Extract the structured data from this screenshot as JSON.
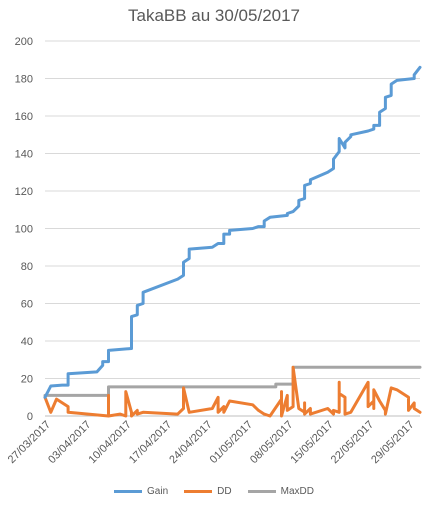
{
  "chart_data": {
    "type": "line",
    "title": "TakaBB au 30/05/2017",
    "ylim": [
      0,
      200
    ],
    "y_ticks": [
      "0",
      "20",
      "40",
      "60",
      "80",
      "100",
      "120",
      "140",
      "160",
      "180",
      "200"
    ],
    "x_ticks": [
      "27/03/2017",
      "03/04/2017",
      "10/04/2017",
      "17/04/2017",
      "24/04/2017",
      "01/05/2017",
      "08/05/2017",
      "15/05/2017",
      "22/05/2017",
      "29/05/2017"
    ],
    "xlim": [
      "2017-03-27",
      "2017-05-31"
    ],
    "grid": true,
    "legend_position": "bottom",
    "series": [
      {
        "name": "Gain",
        "color": "#5b9bd5",
        "points": [
          [
            "2017-03-27",
            10
          ],
          [
            "2017-03-28",
            16
          ],
          [
            "2017-03-30",
            16.5
          ],
          [
            "2017-03-31",
            16.5
          ],
          [
            "2017-03-31",
            22.5
          ],
          [
            "2017-04-05",
            23.5
          ],
          [
            "2017-04-06",
            27
          ],
          [
            "2017-04-06",
            29
          ],
          [
            "2017-04-07",
            29
          ],
          [
            "2017-04-07",
            35
          ],
          [
            "2017-04-11",
            36
          ],
          [
            "2017-04-11",
            53
          ],
          [
            "2017-04-12",
            54
          ],
          [
            "2017-04-12",
            59
          ],
          [
            "2017-04-13",
            60
          ],
          [
            "2017-04-13",
            66
          ],
          [
            "2017-04-19",
            73
          ],
          [
            "2017-04-20",
            75
          ],
          [
            "2017-04-20",
            82
          ],
          [
            "2017-04-21",
            84
          ],
          [
            "2017-04-21",
            89
          ],
          [
            "2017-04-25",
            90
          ],
          [
            "2017-04-26",
            92
          ],
          [
            "2017-04-27",
            92
          ],
          [
            "2017-04-27",
            97
          ],
          [
            "2017-04-28",
            97
          ],
          [
            "2017-04-28",
            99
          ],
          [
            "2017-05-02",
            100
          ],
          [
            "2017-05-03",
            101
          ],
          [
            "2017-05-04",
            101
          ],
          [
            "2017-05-04",
            104
          ],
          [
            "2017-05-05",
            106
          ],
          [
            "2017-05-08",
            107
          ],
          [
            "2017-05-08",
            108
          ],
          [
            "2017-05-09",
            109
          ],
          [
            "2017-05-10",
            112
          ],
          [
            "2017-05-10",
            115
          ],
          [
            "2017-05-11",
            116
          ],
          [
            "2017-05-11",
            123
          ],
          [
            "2017-05-12",
            124
          ],
          [
            "2017-05-12",
            126
          ],
          [
            "2017-05-15",
            130
          ],
          [
            "2017-05-16",
            132
          ],
          [
            "2017-05-16",
            137
          ],
          [
            "2017-05-17",
            141
          ],
          [
            "2017-05-17",
            148
          ],
          [
            "2017-05-18",
            143
          ],
          [
            "2017-05-18",
            146
          ],
          [
            "2017-05-19",
            149
          ],
          [
            "2017-05-19",
            150
          ],
          [
            "2017-05-22",
            152
          ],
          [
            "2017-05-23",
            153
          ],
          [
            "2017-05-23",
            155
          ],
          [
            "2017-05-24",
            155
          ],
          [
            "2017-05-24",
            162
          ],
          [
            "2017-05-25",
            164
          ],
          [
            "2017-05-25",
            170
          ],
          [
            "2017-05-26",
            171
          ],
          [
            "2017-05-26",
            177
          ],
          [
            "2017-05-27",
            179
          ],
          [
            "2017-05-30",
            180
          ],
          [
            "2017-05-30",
            182
          ],
          [
            "2017-05-31",
            186
          ]
        ]
      },
      {
        "name": "DD",
        "color": "#ed7d31",
        "points": [
          [
            "2017-03-27",
            10
          ],
          [
            "2017-03-28",
            2
          ],
          [
            "2017-03-29",
            9
          ],
          [
            "2017-03-31",
            5
          ],
          [
            "2017-03-31",
            2
          ],
          [
            "2017-04-07",
            0
          ],
          [
            "2017-04-07",
            11
          ],
          [
            "2017-04-07",
            0
          ],
          [
            "2017-04-09",
            1
          ],
          [
            "2017-04-10",
            0
          ],
          [
            "2017-04-10",
            13
          ],
          [
            "2017-04-11",
            2
          ],
          [
            "2017-04-11",
            0
          ],
          [
            "2017-04-12",
            3
          ],
          [
            "2017-04-12",
            1
          ],
          [
            "2017-04-13",
            2
          ],
          [
            "2017-04-19",
            1
          ],
          [
            "2017-04-20",
            4
          ],
          [
            "2017-04-20",
            15
          ],
          [
            "2017-04-21",
            2
          ],
          [
            "2017-04-25",
            4
          ],
          [
            "2017-04-26",
            10
          ],
          [
            "2017-04-26",
            2
          ],
          [
            "2017-04-27",
            5
          ],
          [
            "2017-04-27",
            2
          ],
          [
            "2017-04-28",
            8
          ],
          [
            "2017-05-02",
            6
          ],
          [
            "2017-05-03",
            3
          ],
          [
            "2017-05-04",
            1
          ],
          [
            "2017-05-05",
            0
          ],
          [
            "2017-05-07",
            9
          ],
          [
            "2017-05-07",
            13
          ],
          [
            "2017-05-07",
            0
          ],
          [
            "2017-05-08",
            11
          ],
          [
            "2017-05-08",
            3
          ],
          [
            "2017-05-09",
            5
          ],
          [
            "2017-05-09",
            7
          ],
          [
            "2017-05-09",
            26
          ],
          [
            "2017-05-10",
            4
          ],
          [
            "2017-05-11",
            2
          ],
          [
            "2017-05-11",
            7
          ],
          [
            "2017-05-11",
            1
          ],
          [
            "2017-05-12",
            4
          ],
          [
            "2017-05-12",
            1
          ],
          [
            "2017-05-15",
            4
          ],
          [
            "2017-05-16",
            1
          ],
          [
            "2017-05-16",
            3
          ],
          [
            "2017-05-17",
            2
          ],
          [
            "2017-05-17",
            18
          ],
          [
            "2017-05-17",
            12
          ],
          [
            "2017-05-18",
            10
          ],
          [
            "2017-05-18",
            1
          ],
          [
            "2017-05-19",
            2
          ],
          [
            "2017-05-22",
            18
          ],
          [
            "2017-05-22",
            5
          ],
          [
            "2017-05-23",
            8
          ],
          [
            "2017-05-23",
            4
          ],
          [
            "2017-05-23",
            14
          ],
          [
            "2017-05-24",
            8
          ],
          [
            "2017-05-25",
            3
          ],
          [
            "2017-05-25",
            1
          ],
          [
            "2017-05-26",
            15
          ],
          [
            "2017-05-27",
            14
          ],
          [
            "2017-05-29",
            10
          ],
          [
            "2017-05-29",
            3
          ],
          [
            "2017-05-30",
            7
          ],
          [
            "2017-05-30",
            4
          ],
          [
            "2017-05-31",
            2
          ]
        ]
      },
      {
        "name": "MaxDD",
        "color": "#a5a5a5",
        "points": [
          [
            "2017-03-27",
            11
          ],
          [
            "2017-04-07",
            11
          ],
          [
            "2017-04-07",
            15.5
          ],
          [
            "2017-05-06",
            15.5
          ],
          [
            "2017-05-06",
            17
          ],
          [
            "2017-05-09",
            17
          ],
          [
            "2017-05-09",
            26
          ],
          [
            "2017-05-31",
            26
          ]
        ]
      }
    ]
  }
}
